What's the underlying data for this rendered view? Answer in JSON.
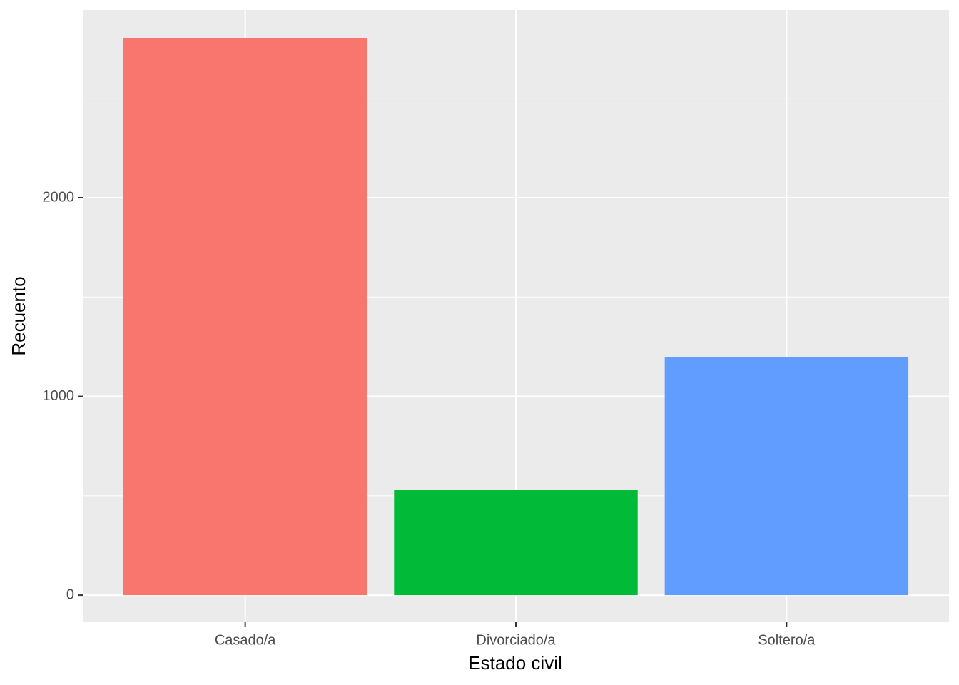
{
  "chart_data": {
    "type": "bar",
    "x_label": "Estado civil",
    "y_label": "Recuento",
    "categories": [
      "Casado/a",
      "Divorciado/a",
      "Soltero/a"
    ],
    "values": [
      2804,
      528,
      1199
    ],
    "colors": [
      "#f8766d",
      "#00ba38",
      "#619cff"
    ],
    "ylim": [
      -136,
      2944
    ],
    "yticks": [
      0,
      1000,
      2000
    ],
    "minor_yticks": [
      500,
      1500,
      2500
    ],
    "grid": true
  }
}
